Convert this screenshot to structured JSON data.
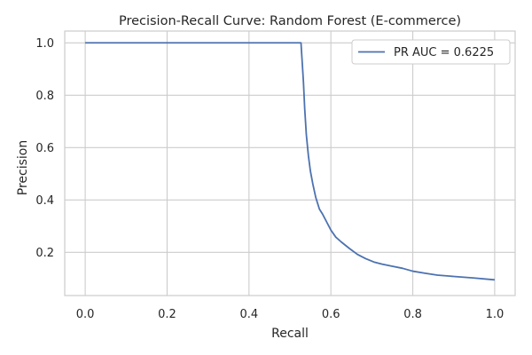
{
  "chart_data": {
    "type": "line",
    "title": "Precision-Recall Curve: Random Forest (E-commerce)",
    "xlabel": "Recall",
    "ylabel": "Precision",
    "xlim": [
      -0.05,
      1.05
    ],
    "ylim": [
      0.035,
      1.045
    ],
    "xticks": [
      0.0,
      0.2,
      0.4,
      0.6,
      0.8,
      1.0
    ],
    "yticks": [
      0.2,
      0.4,
      0.6,
      0.8,
      1.0
    ],
    "xtick_labels": [
      "0.0",
      "0.2",
      "0.4",
      "0.6",
      "0.8",
      "1.0"
    ],
    "ytick_labels": [
      "0.2",
      "0.4",
      "0.6",
      "0.8",
      "1.0"
    ],
    "grid": true,
    "legend_position": "top-right",
    "line_color": "#4c72b0",
    "series": [
      {
        "name": "PR AUC = 0.6225",
        "x": [
          0.0,
          0.1,
          0.2,
          0.3,
          0.4,
          0.5,
          0.527,
          0.529,
          0.531,
          0.533,
          0.536,
          0.54,
          0.545,
          0.55,
          0.556,
          0.563,
          0.572,
          0.58,
          0.59,
          0.6,
          0.612,
          0.625,
          0.645,
          0.665,
          0.685,
          0.705,
          0.725,
          0.75,
          0.775,
          0.8,
          0.83,
          0.86,
          0.9,
          0.95,
          1.0
        ],
        "y": [
          1.0,
          1.0,
          1.0,
          1.0,
          1.0,
          1.0,
          1.0,
          0.95,
          0.9,
          0.85,
          0.75,
          0.65,
          0.57,
          0.51,
          0.46,
          0.41,
          0.365,
          0.345,
          0.315,
          0.285,
          0.258,
          0.24,
          0.215,
          0.192,
          0.176,
          0.163,
          0.155,
          0.147,
          0.139,
          0.128,
          0.12,
          0.113,
          0.108,
          0.102,
          0.095
        ]
      }
    ]
  }
}
